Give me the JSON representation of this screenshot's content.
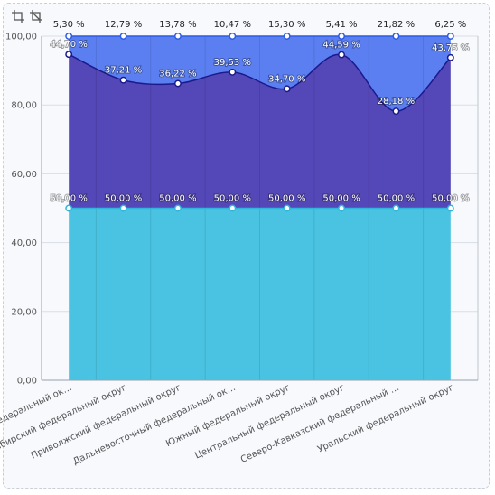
{
  "toolbar": {
    "icons": [
      "crop-icon",
      "crop-alt-icon"
    ]
  },
  "colors": {
    "bottom_fill": "#49c3e1",
    "bottom_line": "#2fb6d9",
    "middle_fill": "#5447b7",
    "middle_line": "#1b1a8c",
    "top_fill": "#5b7ff0",
    "top_line": "#2d5be3",
    "grid": "#d9dde5",
    "axis": "#9aa1ad"
  },
  "chart_data": {
    "type": "area",
    "stacked": true,
    "ylim": [
      0,
      100
    ],
    "yticks": [
      "0,00",
      "20,00",
      "40,00",
      "60,00",
      "80,00",
      "100,00"
    ],
    "grid": true,
    "categories": [
      "Северо-Западный федеральный ок…",
      "Сибирский федеральный округ",
      "Приволжский федеральный округ",
      "Дальневосточный федеральный ок…",
      "Южный федеральный округ",
      "Центральный федеральный округ",
      "Северо-Кавказский федеральный …",
      "Уральский федеральный округ"
    ],
    "series": [
      {
        "values": [
          50.0,
          50.0,
          50.0,
          50.0,
          50.0,
          50.0,
          50.0,
          50.0
        ],
        "labels": [
          "50,00 %",
          "50,00 %",
          "50,00 %",
          "50,00 %",
          "50,00 %",
          "50,00 %",
          "50,00 %",
          "50,00 %"
        ]
      },
      {
        "values": [
          44.7,
          37.21,
          36.22,
          39.53,
          34.7,
          44.59,
          28.18,
          43.75
        ],
        "labels": [
          "44,70 %",
          "37,21 %",
          "36,22 %",
          "39,53 %",
          "34,70 %",
          "44,59 %",
          "28,18 %",
          "43,75 %"
        ]
      },
      {
        "values": [
          5.3,
          12.79,
          13.78,
          10.47,
          15.3,
          5.41,
          21.82,
          6.25
        ],
        "labels": [
          "5,30 %",
          "12,79 %",
          "13,78 %",
          "10,47 %",
          "15,30 %",
          "5,41 %",
          "21,82 %",
          "6,25 %"
        ]
      }
    ]
  }
}
